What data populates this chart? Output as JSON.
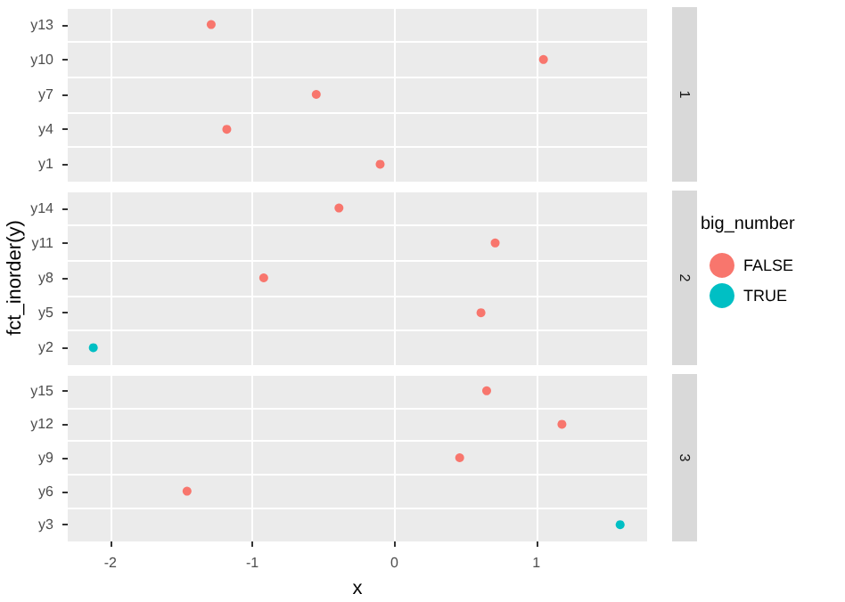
{
  "chart_data": [
    {
      "type": "scatter",
      "orientation": "horizontal",
      "annotations": [
        "1"
      ],
      "categories": [
        "y13",
        "y10",
        "y7",
        "y4",
        "y1"
      ],
      "series": [
        {
          "color": "#f8766d",
          "values": [
            -1.29,
            1.05,
            -0.55,
            -1.18,
            -0.1
          ]
        }
      ],
      "xlim": [
        -2.3,
        1.78
      ],
      "xticks": [
        -2,
        -1,
        0,
        1
      ],
      "grid": true,
      "marker": "circle",
      "tick_labels": "y"
    },
    {
      "type": "scatter",
      "orientation": "horizontal",
      "annotations": [
        "2"
      ],
      "ylabel": "fct_inorder(y)",
      "legend_title": "big_number",
      "legend": "right",
      "categories": [
        "y14",
        "y11",
        "y8",
        "y5",
        "y2"
      ],
      "series": [
        {
          "name": "FALSE",
          "color": "#f8766d",
          "values": [
            -0.39,
            0.71,
            -0.92,
            0.61,
            null
          ]
        },
        {
          "name": "TRUE",
          "color": "#00bfc4",
          "values": [
            null,
            null,
            null,
            null,
            -2.12
          ]
        }
      ],
      "xlim": [
        -2.3,
        1.78
      ],
      "xticks": [
        -2,
        -1,
        0,
        1
      ],
      "grid": true,
      "marker": "circle",
      "tick_labels": "y"
    },
    {
      "type": "scatter",
      "orientation": "horizontal",
      "annotations": [
        "3"
      ],
      "xlabel": "x",
      "categories": [
        "y15",
        "y12",
        "y9",
        "y6",
        "y3"
      ],
      "series": [
        {
          "color": "#f8766d",
          "values": [
            0.65,
            1.18,
            0.46,
            -1.46,
            null
          ]
        },
        {
          "color": "#00bfc4",
          "values": [
            null,
            null,
            null,
            null,
            1.59
          ]
        }
      ],
      "xlim": [
        -2.3,
        1.78
      ],
      "xticks": [
        -2,
        -1,
        0,
        1
      ],
      "grid": true,
      "marker": "circle"
    }
  ]
}
